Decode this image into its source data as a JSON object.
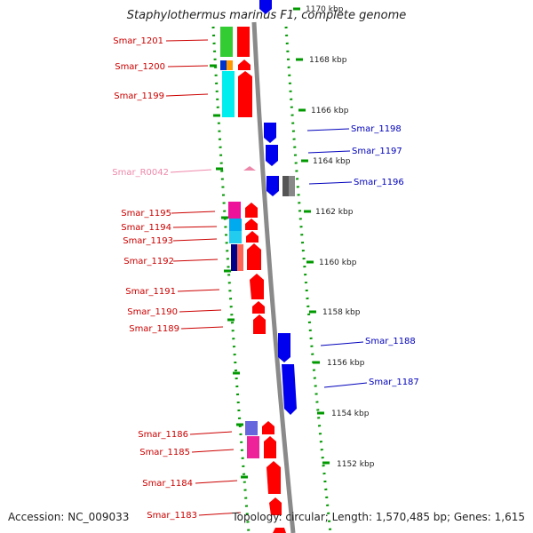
{
  "title": "Staphylothermus marinus F1, complete genome",
  "footer": {
    "accession": "Accession: NC_009033",
    "topology": "Topology: circular; Length: 1,570,485 bp; Genes: 1,615"
  },
  "colors": {
    "left_label": "#cc0000",
    "right_label": "#0000bb",
    "rna_label": "#ee88aa",
    "tick": "#009900",
    "axis": "#808080",
    "forward_gene": "#ff0000",
    "reverse_gene": "#0000ee"
  },
  "kbp_ticks": [
    "1170 kbp",
    "1168 kbp",
    "1166 kbp",
    "1164 kbp",
    "1162 kbp",
    "1160 kbp",
    "1158 kbp",
    "1156 kbp",
    "1154 kbp",
    "1152 kbp"
  ],
  "left_labels": [
    "Smar_1201",
    "Smar_1200",
    "Smar_1199",
    "Smar_R0042",
    "Smar_1195",
    "Smar_1194",
    "Smar_1193",
    "Smar_1192",
    "Smar_1191",
    "Smar_1190",
    "Smar_1189",
    "Smar_1186",
    "Smar_1185",
    "Smar_1184",
    "Smar_1183"
  ],
  "right_labels": [
    "Smar_1198",
    "Smar_1197",
    "Smar_1196",
    "Smar_1188",
    "Smar_1187"
  ]
}
